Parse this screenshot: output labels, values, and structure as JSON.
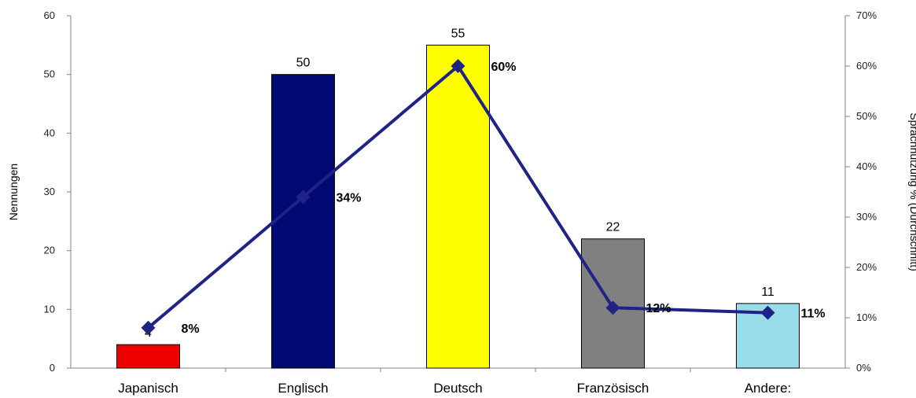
{
  "chart_data": {
    "type": "bar",
    "categories": [
      "Japanisch",
      "Englisch",
      "Deutsch",
      "Französisch",
      "Andere:"
    ],
    "series": [
      {
        "type": "bar",
        "axis": "left",
        "values": [
          4,
          50,
          55,
          22,
          11
        ],
        "data_labels": [
          "4",
          "50",
          "55",
          "22",
          "11"
        ],
        "colors": [
          "#ee0000",
          "#000a72",
          "#ffff00",
          "#808080",
          "#99ddea"
        ]
      },
      {
        "type": "line",
        "axis": "right",
        "values": [
          8,
          34,
          60,
          12,
          11
        ],
        "data_labels": [
          "8%",
          "34%",
          "60%",
          "12%",
          "11%"
        ],
        "color": "#1f2385"
      }
    ],
    "title": "",
    "xlabel": "",
    "ylabel": "Nennungen",
    "y2label": "Sprachnutzung % (Durchschnitt)",
    "ylim": [
      0,
      60
    ],
    "y2lim": [
      0,
      70
    ],
    "yticks": [
      "0",
      "10",
      "20",
      "30",
      "40",
      "50",
      "60"
    ],
    "y2ticks": [
      "0%",
      "10%",
      "20%",
      "30%",
      "40%",
      "50%",
      "60%",
      "70%"
    ],
    "grid": false,
    "legend": "none"
  }
}
